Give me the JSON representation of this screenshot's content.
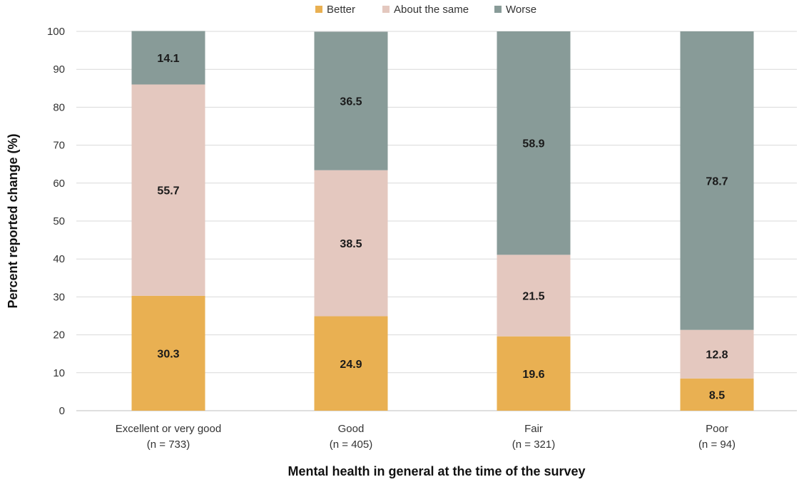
{
  "chart_data": {
    "type": "bar",
    "stacked": true,
    "title": "",
    "xlabel": "Mental health in general at the time of the survey",
    "ylabel": "Percent reported change (%)",
    "ylim": [
      0,
      100
    ],
    "yticks": [
      "0",
      "10",
      "20",
      "30",
      "40",
      "50",
      "60",
      "70",
      "80",
      "90",
      "100"
    ],
    "legend_position": "top-center",
    "grid": true,
    "categories": [
      {
        "label": "Excellent or very good",
        "n": "(n = 733)"
      },
      {
        "label": "Good",
        "n": "(n = 405)"
      },
      {
        "label": "Fair",
        "n": "(n = 321)"
      },
      {
        "label": "Poor",
        "n": "(n = 94)"
      }
    ],
    "series": [
      {
        "name": "Better",
        "color": "#e9b052",
        "values": [
          30.3,
          24.9,
          19.6,
          8.5
        ],
        "labels": [
          "30.3",
          "24.9",
          "19.6",
          "8.5"
        ]
      },
      {
        "name": "About the same",
        "color": "#e4c8bf",
        "values": [
          55.7,
          38.5,
          21.5,
          12.8
        ],
        "labels": [
          "55.7",
          "38.5",
          "21.5",
          "12.8"
        ]
      },
      {
        "name": "Worse",
        "color": "#889b98",
        "values": [
          14.1,
          36.5,
          58.9,
          78.7
        ],
        "labels": [
          "14.1",
          "36.5",
          "58.9",
          "78.7"
        ]
      }
    ]
  }
}
